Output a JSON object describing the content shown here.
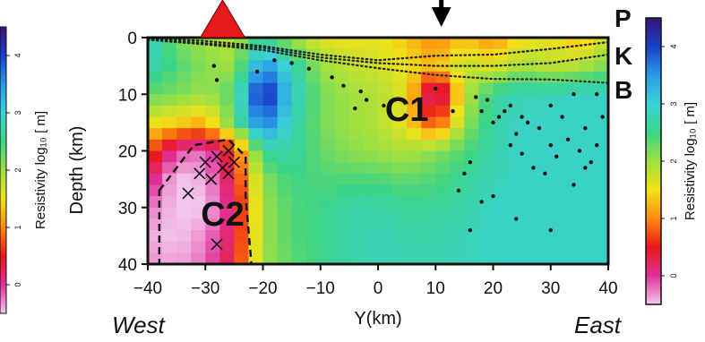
{
  "chart_data": {
    "type": "heatmap",
    "title": "",
    "xlabel": "Y(km)",
    "ylabel": "Depth (km)",
    "xlim": [
      -40,
      40
    ],
    "ylim": [
      0,
      40
    ],
    "y_inverted": true,
    "x_ticks": [
      "−40",
      "−30",
      "−20",
      "−10",
      "0",
      "10",
      "20",
      "30",
      "40"
    ],
    "y_ticks": [
      "0",
      "10",
      "20",
      "30",
      "40"
    ],
    "direction_labels": {
      "left": "West",
      "right": "East"
    },
    "colorbar": {
      "label": "Resistivity log₁₀ [ m]",
      "ticks": [
        "0",
        "1",
        "2",
        "3",
        "4"
      ],
      "range": [
        -0.5,
        4.5
      ],
      "colors": [
        "#f3c8ee",
        "#e0309a",
        "#e81818",
        "#ff8a10",
        "#f2e21a",
        "#9ee040",
        "#3cd488",
        "#3ad2d6",
        "#2a9ae6",
        "#1a40c8",
        "#3a127a"
      ]
    },
    "resistivity_grid": {
      "x": [
        -40,
        -35,
        -30,
        -25,
        -20,
        -15,
        -10,
        -5,
        0,
        5,
        10,
        15,
        20,
        25,
        30,
        35,
        40
      ],
      "depth": [
        0,
        5,
        10,
        15,
        20,
        25,
        30,
        35,
        40
      ],
      "log10_rho": [
        [
          3.0,
          2.2,
          2.0,
          1.8,
          2.6,
          2.0,
          1.6,
          1.5,
          1.6,
          1.3,
          1.0,
          1.3,
          1.0,
          1.5,
          1.6,
          1.2,
          1.8
        ],
        [
          2.8,
          2.4,
          2.1,
          2.0,
          3.6,
          2.8,
          2.0,
          1.8,
          1.7,
          1.5,
          1.2,
          1.8,
          1.6,
          2.0,
          1.8,
          1.9,
          2.2
        ],
        [
          2.3,
          2.2,
          2.0,
          2.4,
          4.4,
          3.0,
          2.2,
          2.0,
          1.9,
          1.6,
          -0.3,
          1.8,
          2.6,
          2.8,
          2.8,
          2.9,
          2.9
        ],
        [
          1.6,
          1.4,
          1.2,
          2.3,
          3.8,
          2.8,
          2.2,
          2.0,
          1.9,
          1.5,
          0.6,
          2.0,
          2.7,
          2.9,
          2.9,
          2.9,
          2.9
        ],
        [
          0.8,
          -0.1,
          -0.2,
          0.6,
          2.6,
          2.7,
          2.3,
          2.1,
          2.0,
          1.9,
          2.1,
          2.4,
          2.7,
          2.9,
          2.9,
          2.9,
          2.9
        ],
        [
          0.2,
          -0.5,
          -0.4,
          0.4,
          2.1,
          2.5,
          2.4,
          2.4,
          2.4,
          2.3,
          2.4,
          2.6,
          2.8,
          2.9,
          2.9,
          2.9,
          2.9
        ],
        [
          -0.2,
          -0.5,
          -0.5,
          0.2,
          2.0,
          2.4,
          2.5,
          2.7,
          2.7,
          2.6,
          2.6,
          2.7,
          2.9,
          2.9,
          2.9,
          2.9,
          2.9
        ],
        [
          -0.4,
          -0.5,
          -0.3,
          0.3,
          2.0,
          2.4,
          2.5,
          2.7,
          2.8,
          2.7,
          2.7,
          2.8,
          2.9,
          2.9,
          2.9,
          2.9,
          2.9
        ],
        [
          -0.3,
          -0.4,
          -0.2,
          0.4,
          2.0,
          2.3,
          2.5,
          2.7,
          2.8,
          2.8,
          2.8,
          2.8,
          2.9,
          2.9,
          2.9,
          2.9,
          2.9
        ]
      ]
    },
    "annotations": [
      {
        "text": "C1",
        "x": 5,
        "depth": 12.5
      },
      {
        "text": "C2",
        "x": -27,
        "depth": 31
      }
    ],
    "interface_labels": [
      "P",
      "K",
      "B"
    ],
    "interfaces": [
      {
        "name": "P",
        "points": [
          [
            -40,
            0.1
          ],
          [
            -30,
            0.6
          ],
          [
            -20,
            1.5
          ],
          [
            -10,
            3.0
          ],
          [
            0,
            4.0
          ],
          [
            10,
            3.2
          ],
          [
            20,
            3.0
          ],
          [
            30,
            2.0
          ],
          [
            40,
            0.8
          ]
        ]
      },
      {
        "name": "K",
        "points": [
          [
            -40,
            0.3
          ],
          [
            -30,
            1.0
          ],
          [
            -20,
            1.8
          ],
          [
            -10,
            3.5
          ],
          [
            0,
            4.5
          ],
          [
            10,
            5.0
          ],
          [
            20,
            5.0
          ],
          [
            30,
            4.5
          ],
          [
            40,
            3.0
          ]
        ]
      },
      {
        "name": "B",
        "points": [
          [
            -40,
            0.4
          ],
          [
            -30,
            1.2
          ],
          [
            -20,
            2.2
          ],
          [
            -10,
            4.0
          ],
          [
            0,
            5.4
          ],
          [
            10,
            6.6
          ],
          [
            20,
            7.3
          ],
          [
            30,
            7.4
          ],
          [
            40,
            8.0
          ]
        ]
      }
    ],
    "station_markers": [
      {
        "shape": "triangle",
        "color": "#e41a1c",
        "x": -27
      },
      {
        "shape": "arrow",
        "color": "#000000",
        "x": 11
      }
    ],
    "earthquakes_crosses": [
      [
        -33,
        27.5
      ],
      [
        -31,
        24
      ],
      [
        -30,
        22
      ],
      [
        -28,
        21
      ],
      [
        -27,
        23
      ],
      [
        -29,
        25
      ],
      [
        -26,
        20
      ],
      [
        -25,
        22
      ],
      [
        -28,
        36.5
      ],
      [
        -26,
        24
      ]
    ],
    "earthquakes_dots": [
      [
        -28.5,
        5
      ],
      [
        -28,
        7.5
      ],
      [
        -21,
        6
      ],
      [
        -18,
        4
      ],
      [
        -15,
        4.5
      ],
      [
        -12,
        5.5
      ],
      [
        -8,
        7
      ],
      [
        -6,
        8.5
      ],
      [
        -3,
        9.5
      ],
      [
        -2,
        11
      ],
      [
        -4,
        12.5
      ],
      [
        1,
        12
      ],
      [
        10,
        9
      ],
      [
        13,
        13
      ],
      [
        17,
        10.5
      ],
      [
        18,
        13
      ],
      [
        20,
        15
      ],
      [
        22,
        13
      ],
      [
        24,
        17
      ],
      [
        23,
        19
      ],
      [
        25,
        20.5
      ],
      [
        27,
        23
      ],
      [
        30,
        19
      ],
      [
        31,
        21
      ],
      [
        29,
        24
      ],
      [
        33,
        18
      ],
      [
        35,
        20
      ],
      [
        36,
        23
      ],
      [
        38,
        19
      ],
      [
        39,
        14
      ],
      [
        38,
        10
      ],
      [
        34,
        10
      ],
      [
        30,
        12
      ],
      [
        26,
        15
      ],
      [
        16,
        22
      ],
      [
        15,
        24
      ],
      [
        14,
        27
      ],
      [
        18,
        29
      ],
      [
        16,
        34
      ],
      [
        20,
        28
      ],
      [
        24,
        32
      ],
      [
        30,
        34
      ],
      [
        34,
        26
      ],
      [
        37,
        22
      ],
      [
        21,
        14
      ],
      [
        19,
        11
      ],
      [
        23,
        12
      ],
      [
        25,
        14
      ],
      [
        28,
        16
      ],
      [
        32,
        14
      ],
      [
        36,
        16
      ]
    ],
    "outlined_region": {
      "label": "C2",
      "points": [
        [
          -38,
          27
        ],
        [
          -35,
          23
        ],
        [
          -32,
          19
        ],
        [
          -26,
          18
        ],
        [
          -23,
          21
        ],
        [
          -23,
          28
        ],
        [
          -22,
          40
        ],
        [
          -38,
          40
        ]
      ]
    }
  }
}
